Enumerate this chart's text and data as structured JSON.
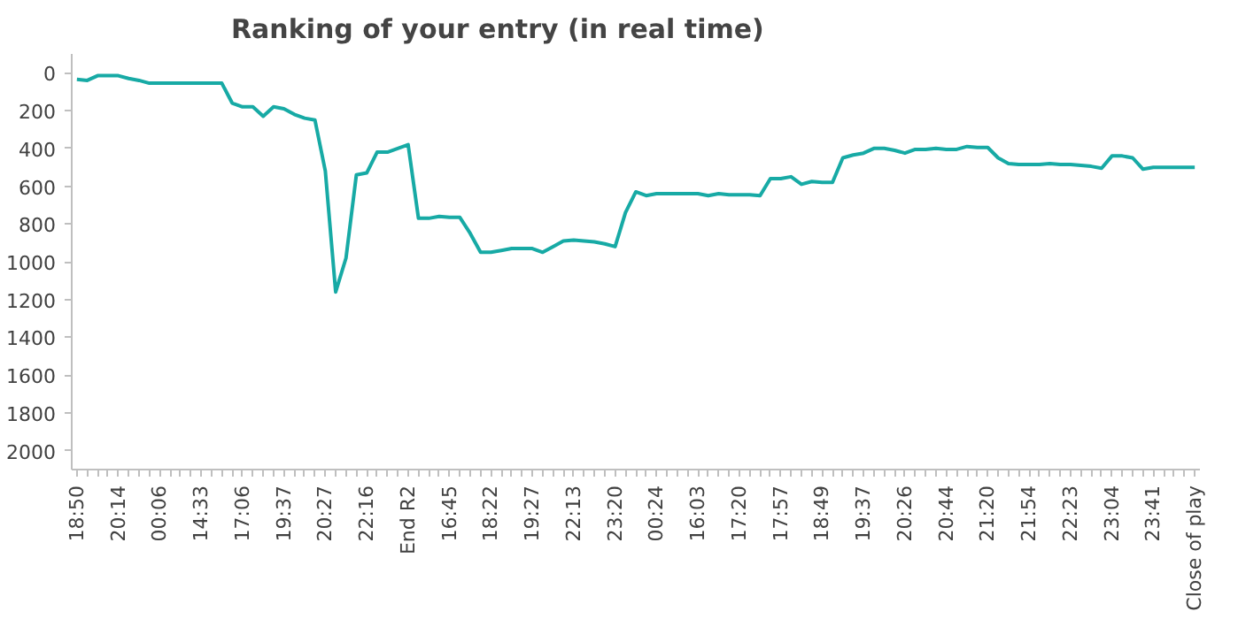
{
  "chart_data": {
    "type": "line",
    "title": "Ranking of your entry (in real time)",
    "categories": [
      "18:50",
      null,
      null,
      null,
      "20:14",
      null,
      null,
      null,
      "00:06",
      null,
      null,
      null,
      "14:33",
      null,
      null,
      null,
      "17:06",
      null,
      null,
      null,
      "19:37",
      null,
      null,
      null,
      "20:27",
      null,
      null,
      null,
      "22:16",
      null,
      null,
      null,
      "End R2",
      null,
      null,
      null,
      "16:45",
      null,
      null,
      null,
      "18:22",
      null,
      null,
      null,
      "19:27",
      null,
      null,
      null,
      "22:13",
      null,
      null,
      null,
      "23:20",
      null,
      null,
      null,
      "00:24",
      null,
      null,
      null,
      "16:03",
      null,
      null,
      null,
      "17:20",
      null,
      null,
      null,
      "17:57",
      null,
      null,
      null,
      "18:49",
      null,
      null,
      null,
      "19:37",
      null,
      null,
      null,
      "20:26",
      null,
      null,
      null,
      "20:44",
      null,
      null,
      null,
      "21:20",
      null,
      null,
      null,
      "21:54",
      null,
      null,
      null,
      "22:23",
      null,
      null,
      null,
      "23:04",
      null,
      null,
      null,
      "23:41",
      null,
      null,
      null,
      "Close of play"
    ],
    "series": [
      {
        "color": "#17aaa5",
        "values": [
          35,
          40,
          15,
          15,
          15,
          30,
          40,
          55,
          55,
          55,
          55,
          55,
          55,
          55,
          55,
          160,
          180,
          180,
          230,
          180,
          190,
          220,
          240,
          250,
          520,
          1160,
          980,
          540,
          530,
          420,
          420,
          400,
          380,
          770,
          770,
          760,
          765,
          765,
          850,
          950,
          950,
          940,
          930,
          930,
          930,
          950,
          920,
          890,
          885,
          890,
          895,
          905,
          920,
          740,
          630,
          650,
          640,
          640,
          640,
          640,
          640,
          650,
          640,
          645,
          645,
          645,
          650,
          560,
          560,
          550,
          590,
          575,
          580,
          580,
          450,
          435,
          425,
          400,
          400,
          410,
          425,
          405,
          405,
          400,
          405,
          405,
          390,
          395,
          395,
          450,
          480,
          485,
          485,
          485,
          480,
          485,
          485,
          490,
          495,
          505,
          440,
          440,
          450,
          510,
          500,
          500,
          500,
          500,
          500
        ]
      }
    ],
    "ylim": [
      2100,
      -100
    ],
    "yticks": [
      0,
      200,
      400,
      600,
      800,
      1000,
      1200,
      1400,
      1600,
      1800,
      2000
    ],
    "grid": false,
    "line_style": "solid"
  }
}
